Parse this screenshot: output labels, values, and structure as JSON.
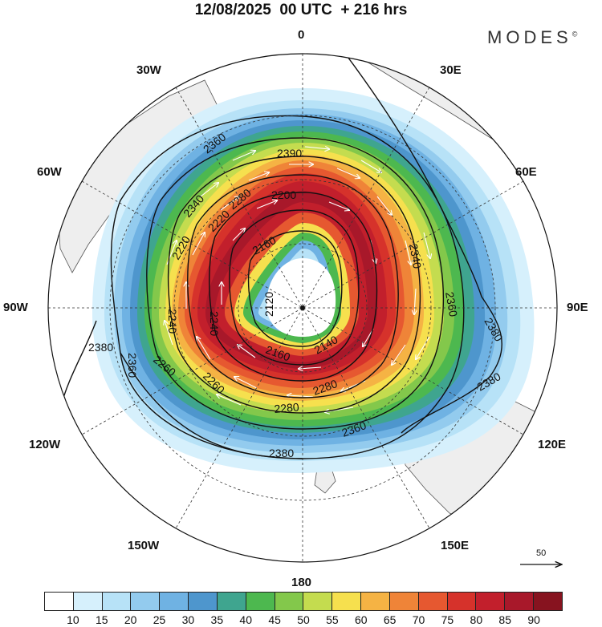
{
  "title": "12/08/2025  00 UTC  + 216 hrs",
  "brand": {
    "name": "MODES",
    "mark": "©"
  },
  "longitude_labels": {
    "lon_0": "0",
    "lon_30e": "30E",
    "lon_60e": "60E",
    "lon_90e": "90E",
    "lon_120e": "120E",
    "lon_150e": "150E",
    "lon_180": "180",
    "lon_150w": "150W",
    "lon_120w": "120W",
    "lon_90w": "90W",
    "lon_60w": "60W",
    "lon_30w": "30W"
  },
  "contour_labels": [
    "2360",
    "2390",
    "2340",
    "2280",
    "2200",
    "2220",
    "2220",
    "2160",
    "2240",
    "2240",
    "2120",
    "2160",
    "2140",
    "2260",
    "2280",
    "2280",
    "2360",
    "2380",
    "2360",
    "2380",
    "2380",
    "2380",
    "2260",
    "2340",
    "2360"
  ],
  "wind_reference": {
    "value": "50"
  },
  "colorbar": {
    "ticks": [
      "10",
      "15",
      "20",
      "25",
      "30",
      "35",
      "40",
      "45",
      "50",
      "55",
      "60",
      "65",
      "70",
      "75",
      "80",
      "85",
      "90"
    ],
    "colors": [
      "#ffffff",
      "#d6f0fc",
      "#b7e2f7",
      "#93cbee",
      "#6fb2e3",
      "#4e96cd",
      "#3fa58f",
      "#4db84f",
      "#83c84b",
      "#c4dc4f",
      "#f6e04e",
      "#f5b344",
      "#ef8438",
      "#e65830",
      "#d6322b",
      "#c21f2c",
      "#a8182a",
      "#87131f"
    ],
    "colors_note": "18 bins from below 10 to above 90"
  },
  "colors": {
    "map_land": "#eeeeee",
    "coast": "#444444",
    "contour": "#111111"
  }
}
